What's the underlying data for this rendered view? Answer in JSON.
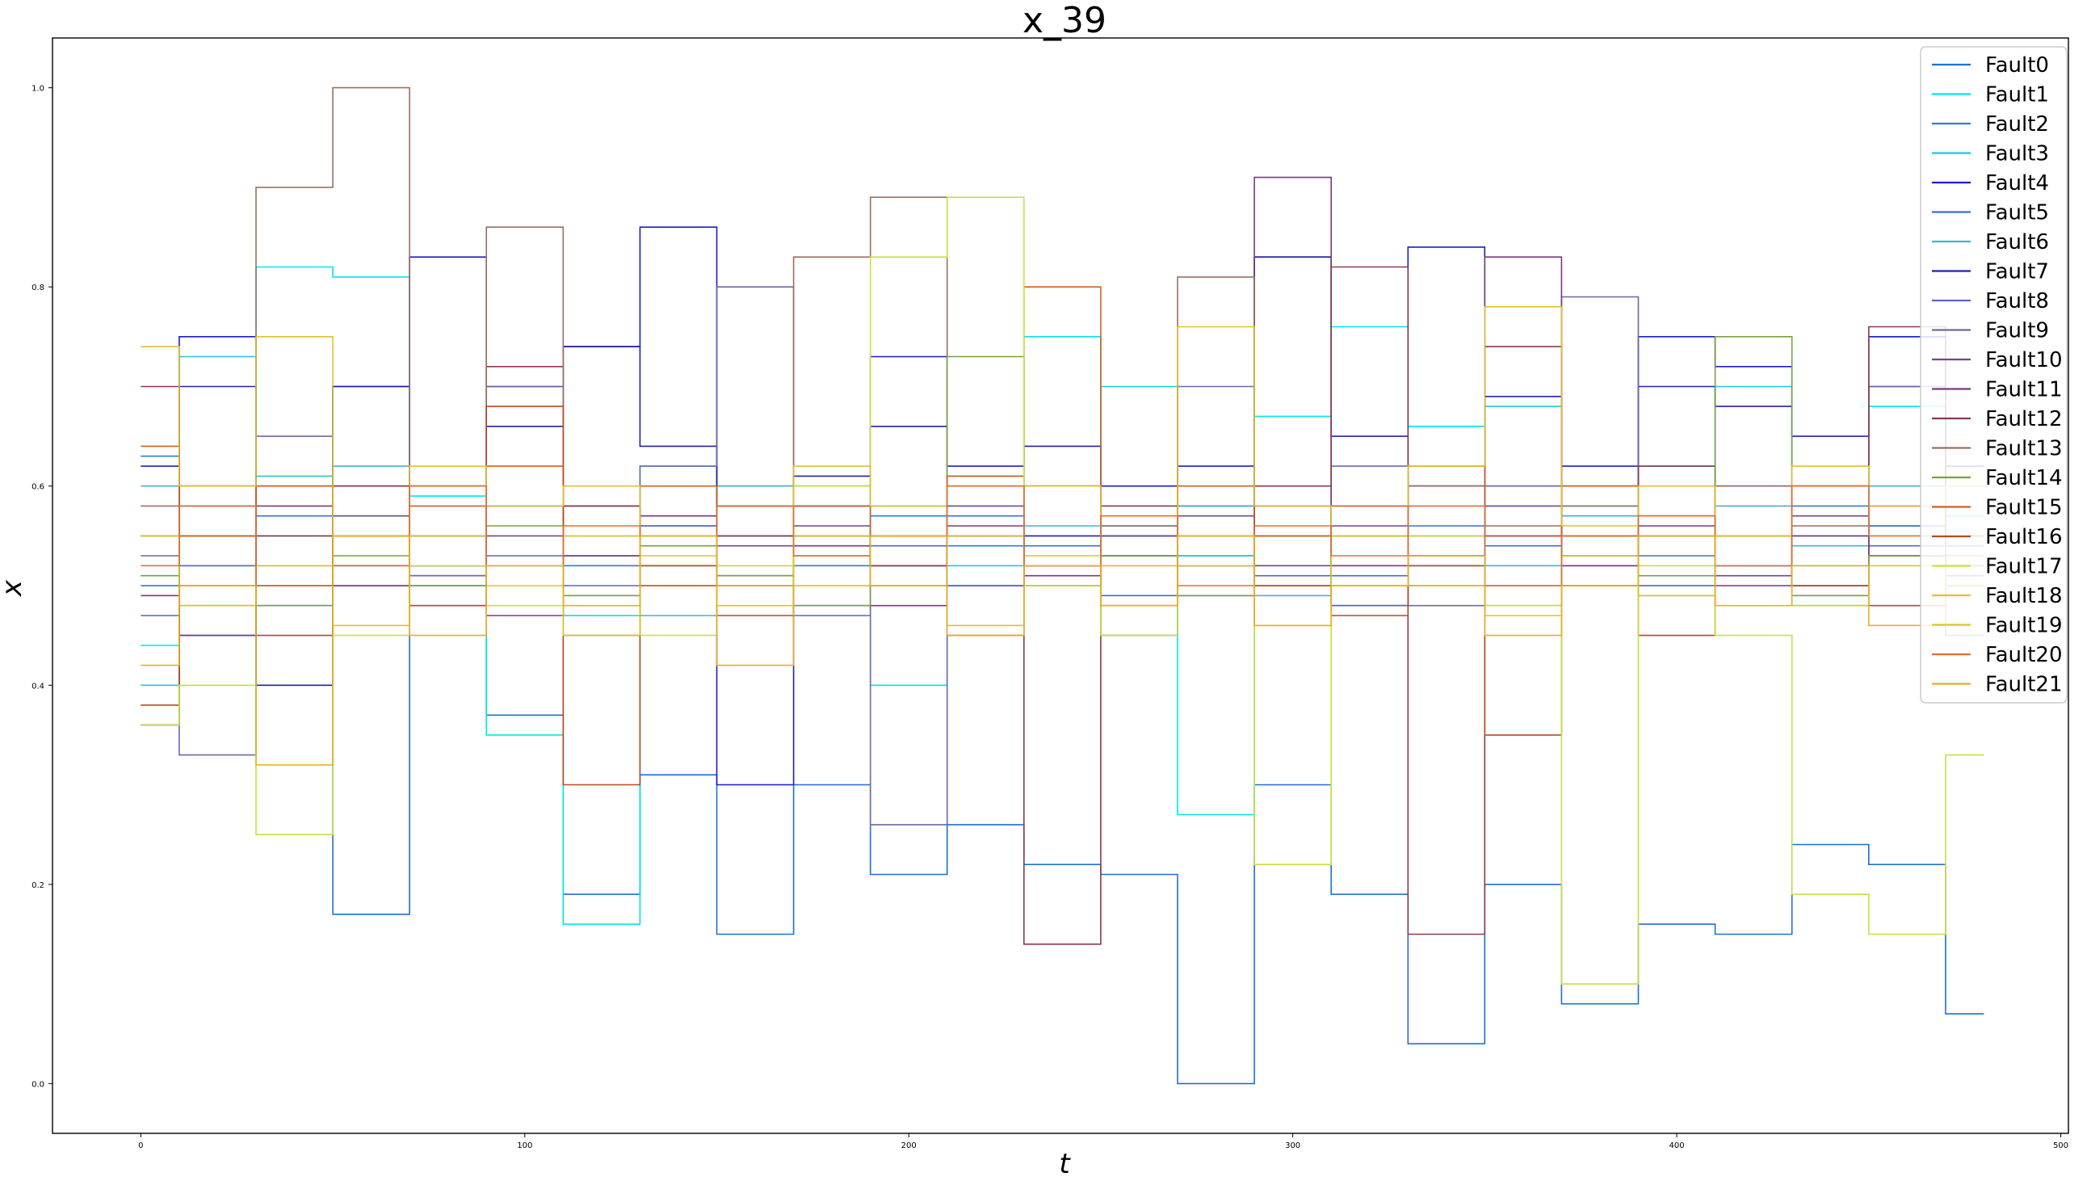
{
  "chart_data": {
    "type": "line",
    "title": "x_39",
    "xlabel": "t",
    "ylabel": "x",
    "xlim": [
      -23,
      502
    ],
    "ylim": [
      -0.05,
      1.05
    ],
    "xticks": [
      0,
      100,
      200,
      300,
      400,
      500
    ],
    "xtick_labels": [
      "0",
      "100",
      "200",
      "300",
      "400",
      "500"
    ],
    "yticks": [
      0.0,
      0.2,
      0.4,
      0.6,
      0.8,
      1.0
    ],
    "ytick_labels": [
      "0.0",
      "0.2",
      "0.4",
      "0.6",
      "0.8",
      "1.0"
    ],
    "grid": false,
    "legend_position": "upper right",
    "x": [
      0,
      20,
      40,
      60,
      80,
      100,
      120,
      140,
      160,
      180,
      200,
      220,
      240,
      260,
      280,
      300,
      320,
      340,
      360,
      380,
      400,
      420,
      440,
      460,
      480
    ],
    "series": [
      {
        "name": "Fault0",
        "color": "#1f6fd6",
        "values": [
          0.5,
          0.45,
          0.52,
          0.17,
          0.51,
          0.37,
          0.19,
          0.31,
          0.15,
          0.3,
          0.21,
          0.26,
          0.22,
          0.21,
          0.0,
          0.3,
          0.19,
          0.04,
          0.2,
          0.08,
          0.16,
          0.15,
          0.24,
          0.22,
          0.07
        ]
      },
      {
        "name": "Fault1",
        "color": "#00e5ee",
        "values": [
          0.44,
          0.52,
          0.82,
          0.81,
          0.59,
          0.35,
          0.16,
          0.62,
          0.55,
          0.6,
          0.4,
          0.6,
          0.75,
          0.55,
          0.27,
          0.67,
          0.76,
          0.66,
          0.6,
          0.58,
          0.62,
          0.6,
          0.55,
          0.68,
          0.57
        ]
      },
      {
        "name": "Fault2",
        "color": "#2a7fd4",
        "values": [
          0.63,
          0.58,
          0.48,
          0.6,
          0.52,
          0.58,
          0.52,
          0.57,
          0.55,
          0.52,
          0.57,
          0.54,
          0.52,
          0.56,
          0.53,
          0.58,
          0.55,
          0.6,
          0.55,
          0.52,
          0.57,
          0.6,
          0.58,
          0.56,
          0.55
        ]
      },
      {
        "name": "Fault3",
        "color": "#20c8d8",
        "values": [
          0.4,
          0.73,
          0.61,
          0.7,
          0.5,
          0.52,
          0.47,
          0.55,
          0.6,
          0.53,
          0.58,
          0.52,
          0.6,
          0.7,
          0.53,
          0.58,
          0.55,
          0.52,
          0.68,
          0.5,
          0.55,
          0.7,
          0.48,
          0.75,
          0.5
        ]
      },
      {
        "name": "Fault4",
        "color": "#1c1cc8",
        "values": [
          0.36,
          0.75,
          0.6,
          0.7,
          0.83,
          0.7,
          0.74,
          0.86,
          0.3,
          0.58,
          0.73,
          0.5,
          0.55,
          0.6,
          0.52,
          0.83,
          0.48,
          0.84,
          0.55,
          0.6,
          0.75,
          0.72,
          0.6,
          0.75,
          0.55
        ]
      },
      {
        "name": "Fault5",
        "color": "#3a6fd6",
        "values": [
          0.51,
          0.55,
          0.57,
          0.5,
          0.55,
          0.58,
          0.53,
          0.56,
          0.5,
          0.55,
          0.52,
          0.57,
          0.54,
          0.53,
          0.58,
          0.55,
          0.51,
          0.56,
          0.54,
          0.57,
          0.53,
          0.55,
          0.52,
          0.56,
          0.54
        ]
      },
      {
        "name": "Fault6",
        "color": "#4ab0c8",
        "values": [
          0.6,
          0.48,
          0.55,
          0.62,
          0.5,
          0.58,
          0.53,
          0.47,
          0.6,
          0.55,
          0.5,
          0.61,
          0.56,
          0.52,
          0.58,
          0.49,
          0.55,
          0.6,
          0.52,
          0.57,
          0.5,
          0.58,
          0.54,
          0.6,
          0.52
        ]
      },
      {
        "name": "Fault7",
        "color": "#2222aa",
        "values": [
          0.62,
          0.7,
          0.4,
          0.7,
          0.6,
          0.66,
          0.74,
          0.64,
          0.58,
          0.61,
          0.66,
          0.62,
          0.64,
          0.55,
          0.62,
          0.83,
          0.65,
          0.6,
          0.69,
          0.62,
          0.7,
          0.68,
          0.65,
          0.7,
          0.62
        ]
      },
      {
        "name": "Fault8",
        "color": "#5a64c8",
        "values": [
          0.47,
          0.52,
          0.5,
          0.55,
          0.48,
          0.53,
          0.5,
          0.56,
          0.51,
          0.47,
          0.54,
          0.5,
          0.52,
          0.49,
          0.55,
          0.51,
          0.48,
          0.53,
          0.5,
          0.55,
          0.49,
          0.52,
          0.5,
          0.54,
          0.51
        ]
      },
      {
        "name": "Fault9",
        "color": "#6a6aaa",
        "values": [
          0.53,
          0.33,
          0.65,
          0.55,
          0.51,
          0.7,
          0.45,
          0.62,
          0.8,
          0.48,
          0.26,
          0.55,
          0.6,
          0.45,
          0.7,
          0.5,
          0.62,
          0.48,
          0.6,
          0.79,
          0.5,
          0.55,
          0.5,
          0.7,
          0.45
        ]
      },
      {
        "name": "Fault10",
        "color": "#6a4a8a",
        "values": [
          0.55,
          0.6,
          0.5,
          0.57,
          0.52,
          0.55,
          0.58,
          0.5,
          0.54,
          0.56,
          0.52,
          0.58,
          0.5,
          0.55,
          0.57,
          0.52,
          0.56,
          0.5,
          0.58,
          0.53,
          0.55,
          0.51,
          0.57,
          0.53,
          0.55
        ]
      },
      {
        "name": "Fault11",
        "color": "#7a3a7a",
        "values": [
          0.49,
          0.45,
          0.58,
          0.5,
          0.55,
          0.47,
          0.53,
          0.57,
          0.5,
          0.54,
          0.48,
          0.56,
          0.51,
          0.53,
          0.49,
          0.91,
          0.52,
          0.55,
          0.83,
          0.52,
          0.56,
          0.5,
          0.55,
          0.53,
          0.5
        ]
      },
      {
        "name": "Fault12",
        "color": "#8a3a4a",
        "values": [
          0.7,
          0.6,
          0.55,
          0.6,
          0.52,
          0.72,
          0.58,
          0.5,
          0.55,
          0.6,
          0.52,
          0.55,
          0.14,
          0.58,
          0.52,
          0.6,
          0.82,
          0.15,
          0.74,
          0.55,
          0.62,
          0.55,
          0.6,
          0.76,
          0.5
        ]
      },
      {
        "name": "Fault13",
        "color": "#9a7060",
        "values": [
          0.58,
          0.55,
          0.9,
          1.0,
          0.6,
          0.86,
          0.55,
          0.52,
          0.58,
          0.83,
          0.89,
          0.55,
          0.6,
          0.56,
          0.81,
          0.58,
          0.55,
          0.6,
          0.56,
          0.58,
          0.55,
          0.6,
          0.56,
          0.58,
          0.55
        ]
      },
      {
        "name": "Fault14",
        "color": "#7aa040",
        "values": [
          0.51,
          0.55,
          0.48,
          0.53,
          0.5,
          0.56,
          0.49,
          0.54,
          0.51,
          0.48,
          0.55,
          0.73,
          0.5,
          0.53,
          0.49,
          0.55,
          0.5,
          0.53,
          0.48,
          0.55,
          0.51,
          0.75,
          0.49,
          0.53,
          0.5
        ]
      },
      {
        "name": "Fault15",
        "color": "#d06020",
        "values": [
          0.64,
          0.55,
          0.6,
          0.52,
          0.58,
          0.62,
          0.55,
          0.6,
          0.52,
          0.58,
          0.55,
          0.61,
          0.8,
          0.57,
          0.6,
          0.55,
          0.58,
          0.62,
          0.55,
          0.6,
          0.57,
          0.52,
          0.6,
          0.58,
          0.55
        ]
      },
      {
        "name": "Fault16",
        "color": "#b84a20",
        "values": [
          0.38,
          0.5,
          0.45,
          0.55,
          0.48,
          0.68,
          0.3,
          0.52,
          0.47,
          0.55,
          0.5,
          0.45,
          0.52,
          0.48,
          0.55,
          0.5,
          0.47,
          0.52,
          0.35,
          0.5,
          0.45,
          0.55,
          0.5,
          0.48,
          0.52
        ]
      },
      {
        "name": "Fault17",
        "color": "#c8e040",
        "values": [
          0.36,
          0.4,
          0.25,
          0.45,
          0.52,
          0.48,
          0.55,
          0.45,
          0.52,
          0.6,
          0.83,
          0.89,
          0.5,
          0.45,
          0.55,
          0.22,
          0.5,
          0.55,
          0.48,
          0.1,
          0.52,
          0.45,
          0.19,
          0.15,
          0.33
        ]
      },
      {
        "name": "Fault18",
        "color": "#e0c030",
        "values": [
          0.74,
          0.6,
          0.75,
          0.55,
          0.62,
          0.58,
          0.6,
          0.55,
          0.5,
          0.62,
          0.58,
          0.55,
          0.6,
          0.52,
          0.76,
          0.58,
          0.55,
          0.62,
          0.78,
          0.56,
          0.6,
          0.55,
          0.62,
          0.58,
          0.6
        ]
      },
      {
        "name": "Fault19",
        "color": "#d8c820",
        "values": [
          0.55,
          0.48,
          0.52,
          0.46,
          0.55,
          0.5,
          0.45,
          0.53,
          0.48,
          0.55,
          0.5,
          0.46,
          0.53,
          0.48,
          0.52,
          0.46,
          0.55,
          0.5,
          0.47,
          0.53,
          0.49,
          0.55,
          0.48,
          0.52,
          0.5
        ]
      },
      {
        "name": "Fault20",
        "color": "#e07030",
        "values": [
          0.52,
          0.58,
          0.5,
          0.55,
          0.6,
          0.52,
          0.56,
          0.5,
          0.58,
          0.53,
          0.55,
          0.6,
          0.52,
          0.57,
          0.5,
          0.56,
          0.53,
          0.58,
          0.5,
          0.55,
          0.57,
          0.52,
          0.6,
          0.55,
          0.53
        ]
      },
      {
        "name": "Fault21",
        "color": "#e8b020",
        "values": [
          0.42,
          0.5,
          0.32,
          0.55,
          0.45,
          0.52,
          0.48,
          0.55,
          0.42,
          0.5,
          0.55,
          0.45,
          0.52,
          0.48,
          0.55,
          0.46,
          0.5,
          0.53,
          0.45,
          0.5,
          0.55,
          0.48,
          0.52,
          0.46,
          0.5
        ]
      }
    ]
  }
}
